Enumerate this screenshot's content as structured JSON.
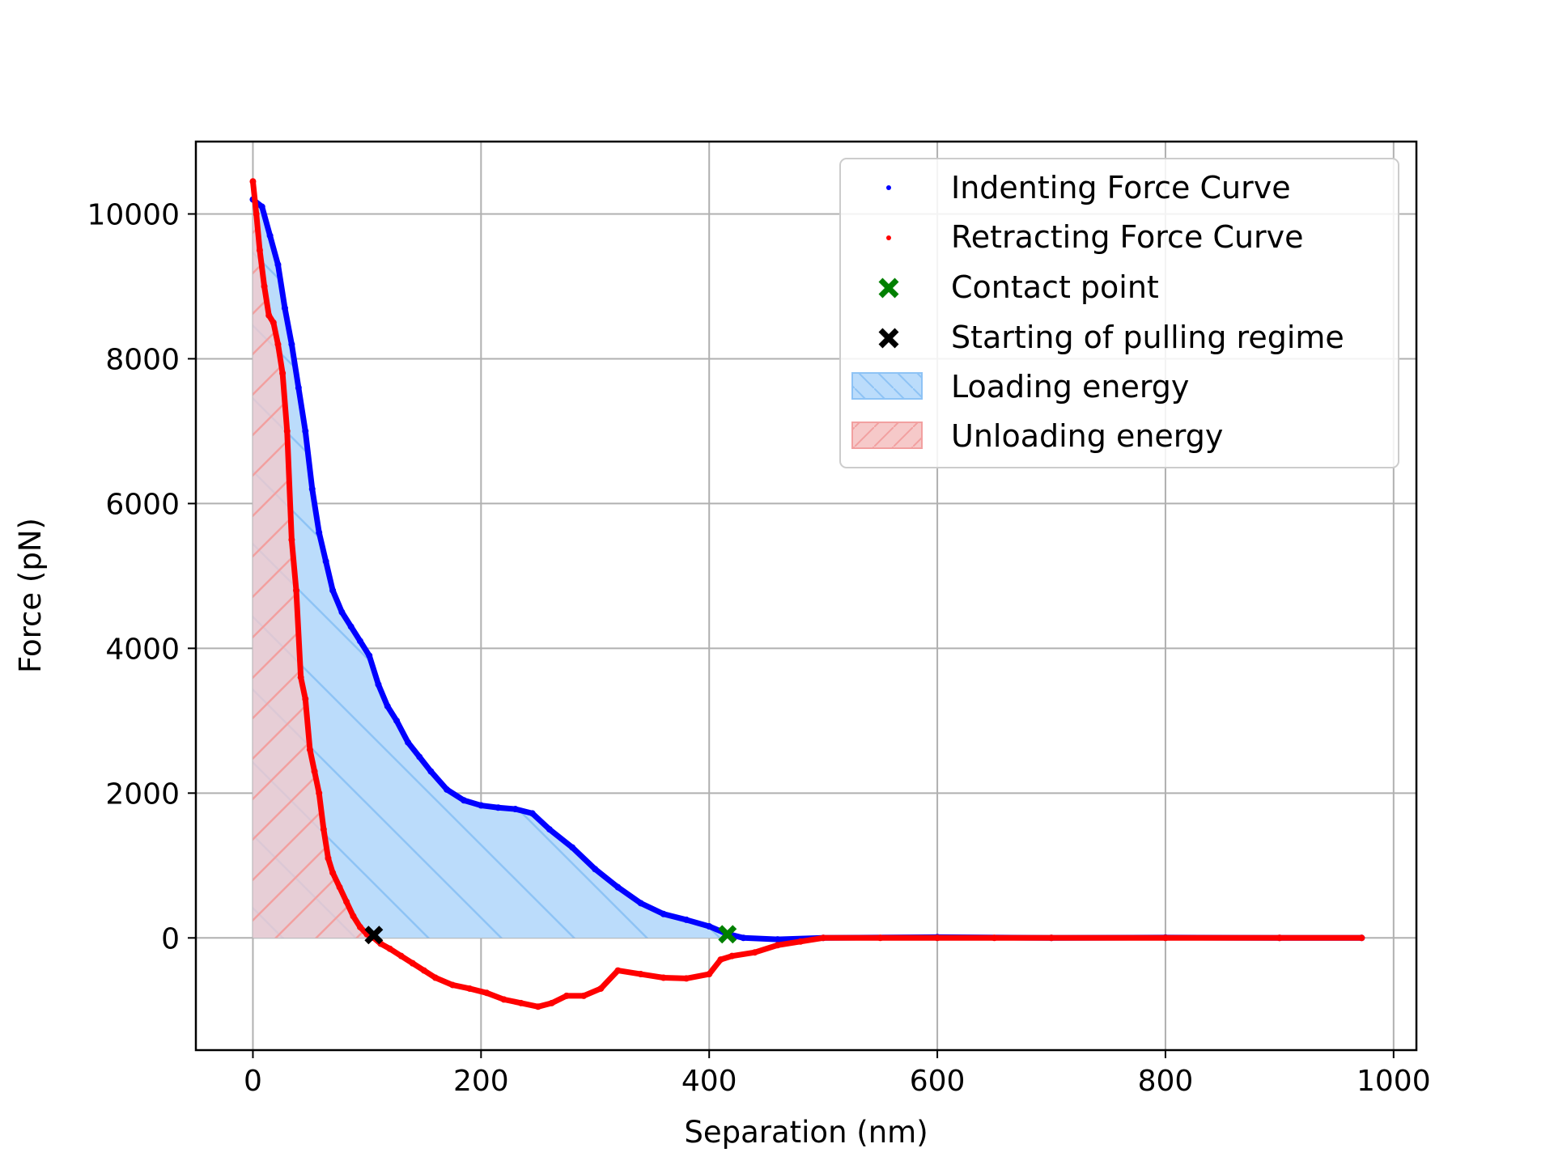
{
  "chart_data": {
    "type": "scatter",
    "xlabel": "Separation (nm)",
    "ylabel": "Force (pN)",
    "xlim": [
      -50,
      1020
    ],
    "ylim": [
      -1550,
      11000
    ],
    "grid": true,
    "legend_position": "top-right",
    "x_ticks": [
      0,
      200,
      400,
      600,
      800,
      1000
    ],
    "x_tick_labels": [
      "0",
      "200",
      "400",
      "600",
      "800",
      "1000"
    ],
    "y_ticks": [
      0,
      2000,
      4000,
      6000,
      8000,
      10000
    ],
    "y_tick_labels": [
      "0",
      "2000",
      "4000",
      "6000",
      "8000",
      "10000"
    ],
    "colors": {
      "indenting": "#0000ff",
      "retracting": "#ff0000",
      "contact": "#008000",
      "pulling": "#000000",
      "loading_fill": "#bbdcfb",
      "loading_hatch": "#8ec3f5",
      "unloading_fill": "#f6c9c9",
      "unloading_hatch": "#f2a0a0",
      "grid": "#b0b0b0"
    },
    "series": [
      {
        "name": "Indenting Force Curve",
        "x": [
          0,
          8,
          15,
          22,
          28,
          34,
          40,
          46,
          52,
          58,
          64,
          70,
          78,
          86,
          94,
          102,
          110,
          118,
          126,
          136,
          146,
          156,
          170,
          185,
          200,
          215,
          230,
          245,
          260,
          280,
          300,
          320,
          340,
          360,
          380,
          400,
          415,
          430,
          460,
          500,
          600,
          700,
          800,
          900,
          972
        ],
        "y": [
          10200,
          10100,
          9700,
          9300,
          8700,
          8200,
          7600,
          7000,
          6200,
          5600,
          5200,
          4800,
          4500,
          4300,
          4100,
          3900,
          3500,
          3200,
          3000,
          2700,
          2500,
          2300,
          2050,
          1900,
          1830,
          1800,
          1780,
          1720,
          1500,
          1250,
          950,
          700,
          480,
          330,
          250,
          160,
          60,
          0,
          -20,
          0,
          10,
          0,
          5,
          0,
          0
        ]
      },
      {
        "name": "Retracting Force Curve",
        "x": [
          0,
          3,
          6,
          10,
          14,
          18,
          22,
          26,
          30,
          34,
          38,
          42,
          46,
          50,
          54,
          58,
          62,
          66,
          70,
          76,
          82,
          88,
          94,
          100,
          106,
          112,
          120,
          130,
          140,
          150,
          160,
          175,
          190,
          205,
          220,
          235,
          250,
          262,
          275,
          290,
          305,
          320,
          340,
          360,
          380,
          400,
          410,
          420,
          440,
          460,
          480,
          500,
          550,
          600,
          650,
          700,
          800,
          900,
          972
        ],
        "y": [
          10450,
          10000,
          9500,
          9000,
          8600,
          8500,
          8200,
          7800,
          7000,
          5500,
          4800,
          3600,
          3300,
          2600,
          2300,
          2000,
          1500,
          1100,
          900,
          700,
          500,
          300,
          150,
          50,
          0,
          -80,
          -150,
          -250,
          -350,
          -450,
          -550,
          -650,
          -700,
          -760,
          -850,
          -900,
          -950,
          -900,
          -800,
          -800,
          -700,
          -450,
          -500,
          -550,
          -560,
          -500,
          -300,
          -250,
          -200,
          -100,
          -50,
          0,
          0,
          0,
          0,
          0,
          0,
          0,
          0
        ]
      }
    ],
    "points": [
      {
        "name": "Contact point",
        "x": 416,
        "y": 50
      },
      {
        "name": "Starting of pulling regime",
        "x": 106,
        "y": 40
      }
    ],
    "areas": [
      {
        "name": "Loading energy"
      },
      {
        "name": "Unloading energy"
      }
    ]
  }
}
